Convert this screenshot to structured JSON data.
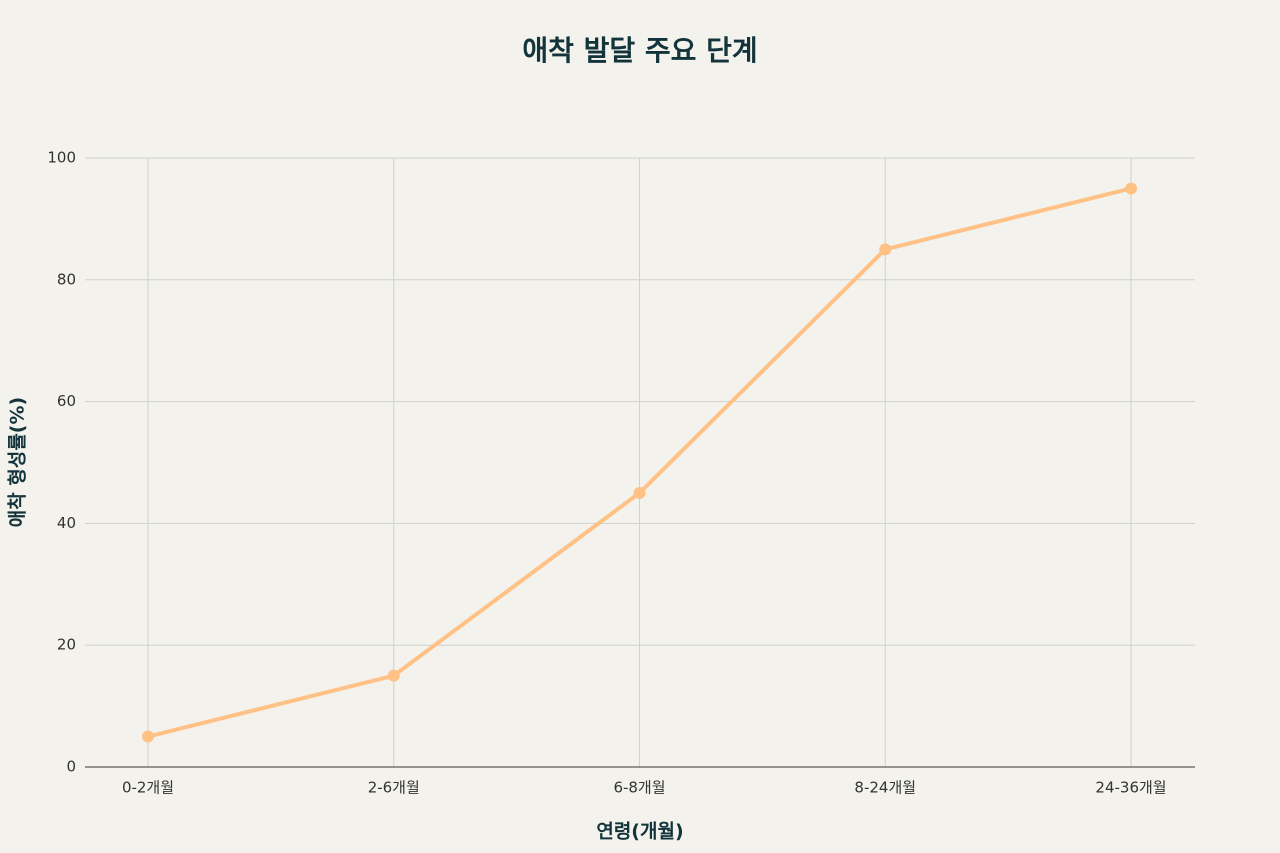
{
  "chart_data": {
    "type": "line",
    "title": "애착 발달 주요 단계",
    "x_label": "연령(개월)",
    "y_label": "애착 형성률(%)",
    "categories": [
      "0-2개월",
      "2-6개월",
      "6-8개월",
      "8-24개월",
      "24-36개월"
    ],
    "values": [
      5,
      15,
      45,
      85,
      95
    ],
    "color": "#ffc185",
    "ylim": [
      0,
      100
    ],
    "yticks": [
      0,
      20,
      40,
      60,
      80,
      100
    ],
    "grid": true
  }
}
